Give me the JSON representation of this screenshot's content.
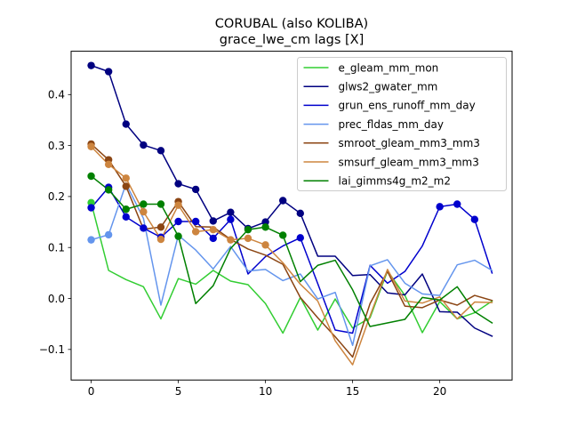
{
  "chart_data": {
    "type": "line",
    "title": "CORUBAL (also KOLIBA)",
    "subtitle": "grace_lwe_cm lags [X]",
    "xlabel": "",
    "ylabel": "",
    "xlim": [
      -1.15,
      24.15
    ],
    "ylim": [
      -0.16,
      0.485
    ],
    "xticks": [
      0,
      5,
      10,
      15,
      20
    ],
    "yticks": [
      -0.1,
      0.0,
      0.1,
      0.2,
      0.3,
      0.4
    ],
    "ytick_labels": [
      "−0.1",
      "0.0",
      "0.1",
      "0.2",
      "0.3",
      "0.4"
    ],
    "grid": false,
    "legend_position": "top-right",
    "x": [
      0,
      1,
      2,
      3,
      4,
      5,
      6,
      7,
      8,
      9,
      10,
      11,
      12,
      13,
      14,
      15,
      16,
      17,
      18,
      19,
      20,
      21,
      22,
      23
    ],
    "series": [
      {
        "name": "e_gleam_mm_mon",
        "color": "#32cd32",
        "values": [
          0.188,
          0.055,
          0.037,
          0.023,
          -0.04,
          0.039,
          0.028,
          0.055,
          0.034,
          0.027,
          -0.01,
          -0.068,
          0.002,
          -0.062,
          -0.001,
          -0.058,
          -0.038,
          0.054,
          0.006,
          -0.067,
          -0.006,
          -0.04,
          -0.028,
          -0.005
        ],
        "markers": [
          0
        ]
      },
      {
        "name": "glws2_gwater_mm",
        "color": "#000080",
        "values": [
          0.457,
          0.445,
          0.342,
          0.301,
          0.29,
          0.225,
          0.214,
          0.152,
          0.169,
          0.137,
          0.15,
          0.192,
          0.167,
          0.083,
          0.083,
          0.045,
          0.047,
          0.011,
          0.007,
          0.048,
          -0.026,
          -0.027,
          -0.058,
          -0.074
        ],
        "markers": [
          0,
          1,
          2,
          3,
          4,
          5,
          6,
          7,
          8,
          9,
          10,
          11,
          12
        ]
      },
      {
        "name": "grun_ens_runoff_mm_day",
        "color": "#0000cd",
        "values": [
          0.178,
          0.218,
          0.16,
          0.138,
          0.12,
          0.151,
          0.151,
          0.118,
          0.155,
          0.048,
          0.082,
          0.103,
          0.119,
          0.029,
          -0.062,
          -0.068,
          0.065,
          0.03,
          0.053,
          0.103,
          0.18,
          0.185,
          0.155,
          0.05
        ],
        "markers": [
          0,
          1,
          2,
          3,
          4,
          5,
          6,
          7,
          8,
          12,
          20,
          21,
          22
        ]
      },
      {
        "name": "prec_fldas_mm_day",
        "color": "#6495ed",
        "values": [
          0.115,
          0.125,
          0.225,
          0.157,
          -0.013,
          0.124,
          0.095,
          0.058,
          0.102,
          0.054,
          0.057,
          0.035,
          0.048,
          -0.001,
          0.012,
          -0.092,
          0.064,
          0.076,
          0.03,
          0.009,
          0.006,
          0.066,
          0.075,
          0.055
        ],
        "markers": [
          0,
          1
        ]
      },
      {
        "name": "smroot_gleam_mm3_mm3",
        "color": "#8b4513",
        "values": [
          0.303,
          0.272,
          0.22,
          0.136,
          0.14,
          0.19,
          0.141,
          0.14,
          0.116,
          0.097,
          0.085,
          0.067,
          0.002,
          -0.038,
          -0.075,
          -0.115,
          -0.01,
          0.053,
          -0.015,
          -0.018,
          -0.003,
          -0.013,
          0.006,
          -0.004
        ],
        "markers": [
          0,
          1,
          2,
          4,
          5
        ]
      },
      {
        "name": "smsurf_gleam_mm3_mm3",
        "color": "#cd853f",
        "values": [
          0.298,
          0.263,
          0.236,
          0.17,
          0.116,
          0.183,
          0.131,
          0.135,
          0.115,
          0.118,
          0.105,
          0.07,
          0.028,
          -0.005,
          -0.083,
          -0.13,
          -0.034,
          0.057,
          -0.005,
          -0.009,
          0.003,
          -0.04,
          -0.007,
          -0.008
        ],
        "markers": [
          0,
          1,
          2,
          3,
          4,
          5,
          6,
          7,
          8,
          9,
          10
        ]
      },
      {
        "name": "lai_gimms4g_m2_m2",
        "color": "#008000",
        "values": [
          0.24,
          0.213,
          0.175,
          0.185,
          0.185,
          0.122,
          -0.01,
          0.025,
          0.098,
          0.135,
          0.14,
          0.124,
          0.033,
          0.065,
          0.075,
          0.017,
          -0.055,
          -0.048,
          -0.041,
          0.002,
          -0.003,
          0.023,
          -0.026,
          -0.048
        ],
        "markers": [
          0,
          1,
          2,
          3,
          4,
          5,
          9,
          10,
          11
        ]
      }
    ]
  }
}
